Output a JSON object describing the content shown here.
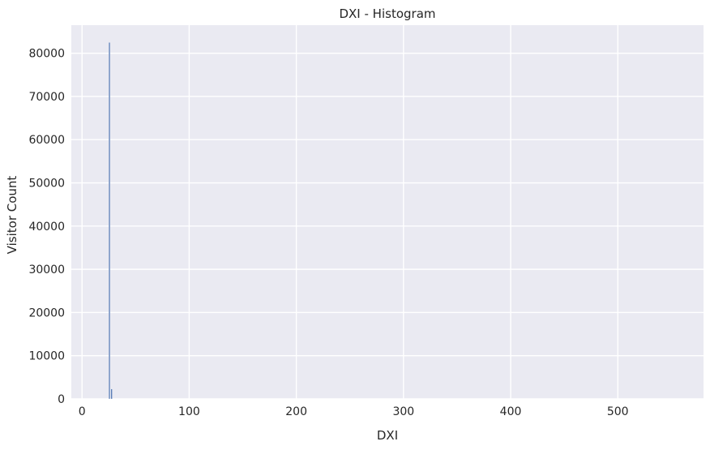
{
  "chart_data": {
    "type": "bar",
    "title": "DXI - Histogram",
    "xlabel": "DXI",
    "ylabel": "Visitor Count",
    "xlim": [
      -10,
      580
    ],
    "ylim": [
      0,
      86500
    ],
    "x_ticks": [
      0,
      100,
      200,
      300,
      400,
      500
    ],
    "y_ticks": [
      0,
      10000,
      20000,
      30000,
      40000,
      50000,
      60000,
      70000,
      80000
    ],
    "grid": true,
    "colors": {
      "background": "#eaeaf2",
      "grid": "#ffffff",
      "bar": "#4c72b0"
    },
    "bins": [
      {
        "x0": 25.0,
        "x1": 26.2,
        "count": 82500
      },
      {
        "x0": 27.0,
        "x1": 28.2,
        "count": 2300
      }
    ]
  }
}
